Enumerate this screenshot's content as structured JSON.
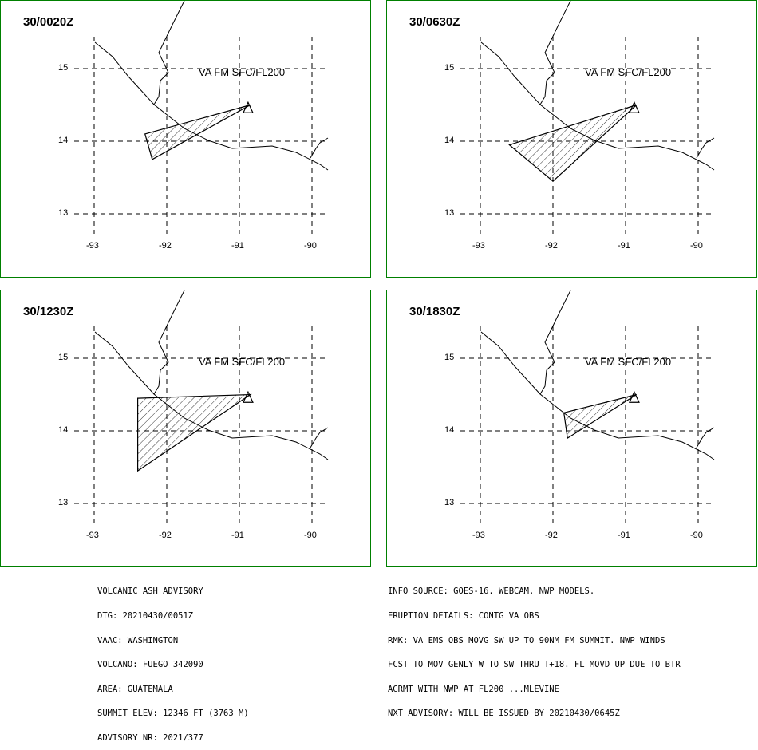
{
  "panels": [
    {
      "time": "30/0020Z",
      "va_label": "VA FM SFC/FL200",
      "ash_polygon": [
        [
          -92.3,
          14.1
        ],
        [
          -90.85,
          14.5
        ],
        [
          -92.2,
          13.75
        ]
      ]
    },
    {
      "time": "30/0630Z",
      "va_label": "VA FM SFC/FL200",
      "ash_polygon": [
        [
          -92.6,
          13.95
        ],
        [
          -90.85,
          14.5
        ],
        [
          -92.0,
          13.45
        ]
      ]
    },
    {
      "time": "30/1230Z",
      "va_label": "VA FM SFC/FL200",
      "ash_polygon": [
        [
          -92.4,
          14.45
        ],
        [
          -90.85,
          14.5
        ],
        [
          -92.4,
          13.45
        ]
      ]
    },
    {
      "time": "30/1830Z",
      "va_label": "VA FM SFC/FL200",
      "ash_polygon": [
        [
          -91.85,
          14.25
        ],
        [
          -90.85,
          14.5
        ],
        [
          -91.8,
          13.9
        ]
      ]
    }
  ],
  "axes": {
    "lat_ticks": [
      "15",
      "14",
      "13"
    ],
    "lon_ticks": [
      "-93",
      "-92",
      "-91",
      "-90"
    ]
  },
  "volcano": {
    "lon": -90.88,
    "lat": 14.47
  },
  "advisory_left": [
    "VOLCANIC ASH ADVISORY",
    "DTG: 20210430/0051Z",
    "VAAC: WASHINGTON",
    "VOLCANO: FUEGO 342090",
    "AREA: GUATEMALA",
    "SUMMIT ELEV: 12346 FT (3763 M)",
    "ADVISORY NR: 2021/377"
  ],
  "advisory_right": [
    "INFO SOURCE: GOES-16. WEBCAM. NWP MODELS.",
    "ERUPTION DETAILS: CONTG VA OBS",
    "RMK: VA EMS OBS MOVG SW UP TO 90NM FM SUMMIT. NWP WINDS",
    "FCST TO MOV GENLY W TO SW THRU T+18. FL MOVD UP DUE TO BTR",
    "AGRMT WITH NWP AT FL200 ...MLEVINE",
    "NXT ADVISORY: WILL BE ISSUED BY 20210430/0645Z"
  ]
}
